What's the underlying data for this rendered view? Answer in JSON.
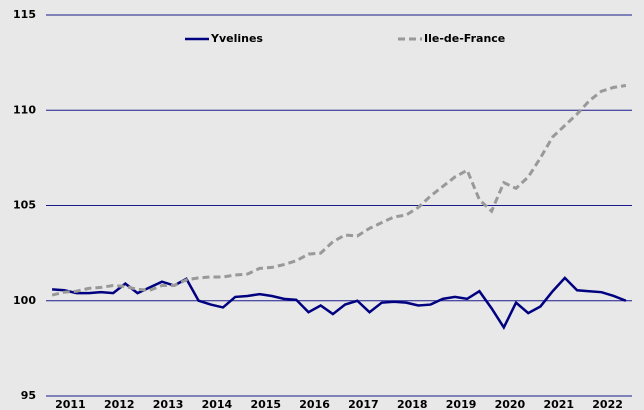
{
  "chart_data": {
    "type": "line",
    "categories": [
      "2011",
      null,
      null,
      null,
      "2012",
      null,
      null,
      null,
      "2013",
      null,
      null,
      null,
      "2014",
      null,
      null,
      null,
      "2015",
      null,
      null,
      null,
      "2016",
      null,
      null,
      null,
      "2017",
      null,
      null,
      null,
      "2018",
      null,
      null,
      null,
      "2019",
      null,
      null,
      null,
      "2020",
      null,
      null,
      null,
      "2021",
      null,
      null,
      null,
      "2022",
      null,
      null,
      null
    ],
    "series": [
      {
        "name": "Yvelines",
        "color": "#000080",
        "dash": false,
        "values": [
          100.6,
          100.55,
          100.4,
          100.4,
          100.45,
          100.4,
          100.9,
          100.4,
          100.7,
          101.0,
          100.8,
          101.15,
          100.0,
          99.8,
          99.65,
          100.2,
          100.25,
          100.35,
          100.25,
          100.1,
          100.05,
          99.4,
          99.75,
          99.3,
          99.8,
          100.0,
          99.4,
          99.9,
          99.95,
          99.9,
          99.75,
          99.8,
          100.1,
          100.2,
          100.1,
          100.5,
          99.6,
          98.6,
          99.9,
          99.35,
          99.7,
          100.5,
          101.2,
          100.55,
          100.5,
          100.45,
          100.25,
          100.0
        ]
      },
      {
        "name": "Ile-de-France",
        "color": "#999999",
        "dash": true,
        "values": [
          100.3,
          100.45,
          100.5,
          100.65,
          100.7,
          100.8,
          100.75,
          100.6,
          100.55,
          100.8,
          100.8,
          101.1,
          101.2,
          101.25,
          101.25,
          101.35,
          101.4,
          101.7,
          101.75,
          101.9,
          102.1,
          102.45,
          102.5,
          103.1,
          103.45,
          103.4,
          103.8,
          104.1,
          104.4,
          104.5,
          104.9,
          105.5,
          106.0,
          106.5,
          106.85,
          105.3,
          104.7,
          106.2,
          105.9,
          106.5,
          107.5,
          108.6,
          109.2,
          109.8,
          110.5,
          111.0,
          111.2,
          111.3
        ]
      }
    ],
    "ylim": [
      95,
      115
    ],
    "yticks": [
      95,
      100,
      105,
      110,
      115
    ],
    "grid": true,
    "legend": "top"
  }
}
